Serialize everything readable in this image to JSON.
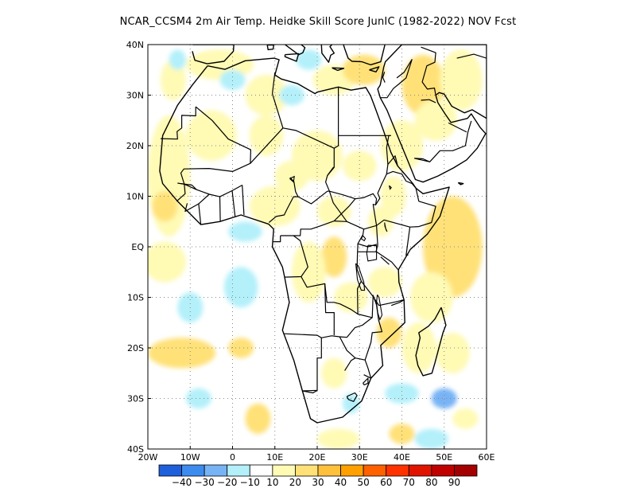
{
  "title": "NCAR_CCSM4  2m Air Temp. Heidke Skill Score JunIC (1982-2022) NOV Fcst",
  "map": {
    "lon_range": [
      -20,
      60
    ],
    "lat_range": [
      -40,
      40
    ],
    "lon_ticks": [
      {
        "value": -20,
        "label": "20W"
      },
      {
        "value": -10,
        "label": "10W"
      },
      {
        "value": 0,
        "label": "0"
      },
      {
        "value": 10,
        "label": "10E"
      },
      {
        "value": 20,
        "label": "20E"
      },
      {
        "value": 30,
        "label": "30E"
      },
      {
        "value": 40,
        "label": "40E"
      },
      {
        "value": 50,
        "label": "50E"
      },
      {
        "value": 60,
        "label": "60E"
      }
    ],
    "lat_ticks": [
      {
        "value": 40,
        "label": "40N"
      },
      {
        "value": 30,
        "label": "30N"
      },
      {
        "value": 20,
        "label": "20N"
      },
      {
        "value": 10,
        "label": "10N"
      },
      {
        "value": 0,
        "label": "EQ"
      },
      {
        "value": -10,
        "label": "10S"
      },
      {
        "value": -20,
        "label": "20S"
      },
      {
        "value": -30,
        "label": "30S"
      },
      {
        "value": -40,
        "label": "40S"
      }
    ],
    "gridlines": "dotted"
  },
  "colorbar": {
    "colors": [
      "#1e5fdc",
      "#3c8cf0",
      "#78b4f5",
      "#b4f0fa",
      "#ffffff",
      "#fffab4",
      "#ffe178",
      "#ffc03c",
      "#ffa000",
      "#ff6000",
      "#ff3200",
      "#e11400",
      "#c00000",
      "#a50000"
    ],
    "labels": [
      "-40",
      "-30",
      "-20",
      "-10",
      "10",
      "20",
      "30",
      "40",
      "50",
      "60",
      "70",
      "80",
      "90"
    ]
  },
  "chart_data": {
    "type": "heatmap",
    "title": "NCAR_CCSM4  2m Air Temp. Heidke Skill Score JunIC (1982-2022) NOV Fcst",
    "variable": "Heidke Skill Score",
    "levels": [
      -40,
      -30,
      -20,
      -10,
      10,
      20,
      30,
      40,
      50,
      60,
      70,
      80,
      90
    ],
    "xlim": [
      -20,
      60
    ],
    "ylim": [
      -40,
      40
    ],
    "regions": [
      {
        "lon": -15,
        "lat": 14,
        "rx": 5,
        "ry": 12,
        "value": 15
      },
      {
        "lon": -16,
        "lat": 8,
        "rx": 3,
        "ry": 3,
        "value": 25
      },
      {
        "lon": -14,
        "lat": 33,
        "rx": 3,
        "ry": 4,
        "value": 15
      },
      {
        "lon": -13,
        "lat": 37,
        "rx": 2,
        "ry": 2,
        "value": -15
      },
      {
        "lon": -3,
        "lat": 36,
        "rx": 8,
        "ry": 3,
        "value": 15
      },
      {
        "lon": 0,
        "lat": 33,
        "rx": 3,
        "ry": 2,
        "value": -15
      },
      {
        "lon": 8,
        "lat": 30,
        "rx": 5,
        "ry": 4,
        "value": 15
      },
      {
        "lon": 14,
        "lat": 30,
        "rx": 3,
        "ry": 2,
        "value": -15
      },
      {
        "lon": 18,
        "lat": 37,
        "rx": 3,
        "ry": 2,
        "value": -15
      },
      {
        "lon": 24,
        "lat": 33,
        "rx": 5,
        "ry": 3,
        "value": 15
      },
      {
        "lon": 31,
        "lat": 35,
        "rx": 5,
        "ry": 3,
        "value": 20
      },
      {
        "lon": 45,
        "lat": 32,
        "rx": 5,
        "ry": 6,
        "value": 20
      },
      {
        "lon": 54,
        "lat": 33,
        "rx": 5,
        "ry": 6,
        "value": 15
      },
      {
        "lon": 48,
        "lat": 25,
        "rx": 5,
        "ry": 4,
        "value": 15
      },
      {
        "lon": 40,
        "lat": 20,
        "rx": 5,
        "ry": 5,
        "value": 15
      },
      {
        "lon": -5,
        "lat": 22,
        "rx": 6,
        "ry": 5,
        "value": 12
      },
      {
        "lon": 8,
        "lat": 22,
        "rx": 4,
        "ry": 4,
        "value": 15
      },
      {
        "lon": 20,
        "lat": 18,
        "rx": 6,
        "ry": 5,
        "value": 15
      },
      {
        "lon": 14,
        "lat": 14,
        "rx": 4,
        "ry": 3,
        "value": 15
      },
      {
        "lon": 30,
        "lat": 16,
        "rx": 4,
        "ry": 3,
        "value": 15
      },
      {
        "lon": 38,
        "lat": 10,
        "rx": 3,
        "ry": 4,
        "value": 15
      },
      {
        "lon": 10,
        "lat": 8,
        "rx": 6,
        "ry": 4,
        "value": 15
      },
      {
        "lon": 24,
        "lat": 7,
        "rx": 4,
        "ry": 3,
        "value": 15
      },
      {
        "lon": 35,
        "lat": 5,
        "rx": 3,
        "ry": 3,
        "value": 15
      },
      {
        "lon": -16,
        "lat": -3,
        "rx": 5,
        "ry": 4,
        "value": 15
      },
      {
        "lon": 3,
        "lat": 3,
        "rx": 4,
        "ry": 2,
        "value": -15
      },
      {
        "lon": 2,
        "lat": -8,
        "rx": 4,
        "ry": 4,
        "value": -15
      },
      {
        "lon": -10,
        "lat": -12,
        "rx": 3,
        "ry": 3,
        "value": -15
      },
      {
        "lon": 24,
        "lat": -2,
        "rx": 3,
        "ry": 4,
        "value": 20
      },
      {
        "lon": 18,
        "lat": -5,
        "rx": 4,
        "ry": 6,
        "value": 15
      },
      {
        "lon": 28,
        "lat": -10,
        "rx": 4,
        "ry": 3,
        "value": 15
      },
      {
        "lon": 36,
        "lat": -7,
        "rx": 4,
        "ry": 3,
        "value": 15
      },
      {
        "lon": 52,
        "lat": 0,
        "rx": 7,
        "ry": 10,
        "value": 20
      },
      {
        "lon": 47,
        "lat": -10,
        "rx": 5,
        "ry": 5,
        "value": 15
      },
      {
        "lon": 37,
        "lat": -17,
        "rx": 3,
        "ry": 3,
        "value": 20
      },
      {
        "lon": 44,
        "lat": -20,
        "rx": 4,
        "ry": 5,
        "value": 15
      },
      {
        "lon": 52,
        "lat": -21,
        "rx": 4,
        "ry": 4,
        "value": 15
      },
      {
        "lon": -12,
        "lat": -21,
        "rx": 8,
        "ry": 3,
        "value": 20
      },
      {
        "lon": 2,
        "lat": -20,
        "rx": 3,
        "ry": 2,
        "value": 25
      },
      {
        "lon": 24,
        "lat": -25,
        "rx": 3,
        "ry": 3,
        "value": 15
      },
      {
        "lon": 6,
        "lat": -34,
        "rx": 3,
        "ry": 3,
        "value": 20
      },
      {
        "lon": 25,
        "lat": -38,
        "rx": 5,
        "ry": 2,
        "value": 15
      },
      {
        "lon": 40,
        "lat": -29,
        "rx": 4,
        "ry": 2,
        "value": -15
      },
      {
        "lon": 50,
        "lat": -30,
        "rx": 3,
        "ry": 2,
        "value": -25
      },
      {
        "lon": 47,
        "lat": -38,
        "rx": 4,
        "ry": 2,
        "value": -20
      },
      {
        "lon": 28,
        "lat": -31,
        "rx": 2,
        "ry": 2,
        "value": -15
      },
      {
        "lon": -8,
        "lat": -30,
        "rx": 3,
        "ry": 2,
        "value": -15
      },
      {
        "lon": 55,
        "lat": -34,
        "rx": 3,
        "ry": 2,
        "value": 15
      },
      {
        "lon": 40,
        "lat": -37,
        "rx": 3,
        "ry": 2,
        "value": 20
      }
    ]
  }
}
